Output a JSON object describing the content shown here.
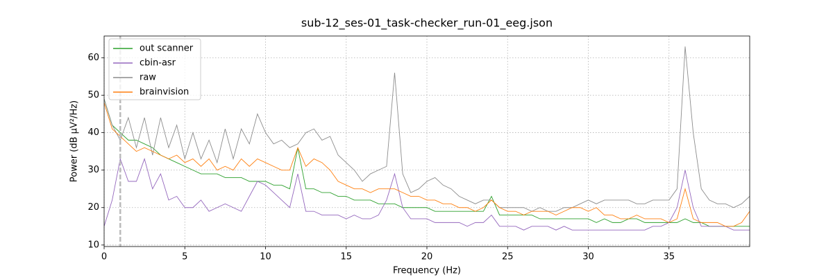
{
  "chart_data": {
    "type": "line",
    "title": "sub-12_ses-01_task-checker_run-01_eeg.json",
    "xlabel": "Frequency (Hz)",
    "ylabel": "Power (dB µV²/Hz)",
    "x": [
      0,
      0.5,
      1,
      1.5,
      2,
      2.5,
      3,
      3.5,
      4,
      4.5,
      5,
      5.5,
      6,
      6.5,
      7,
      7.5,
      8,
      8.5,
      9,
      9.5,
      10,
      10.5,
      11,
      11.5,
      12,
      12.5,
      13,
      13.5,
      14,
      14.5,
      15,
      15.5,
      16,
      16.5,
      17,
      17.5,
      18,
      18.5,
      19,
      19.5,
      20,
      20.5,
      21,
      21.5,
      22,
      22.5,
      23,
      23.5,
      24,
      24.5,
      25,
      25.5,
      26,
      26.5,
      27,
      27.5,
      28,
      28.5,
      29,
      29.5,
      30,
      30.5,
      31,
      31.5,
      32,
      32.5,
      33,
      33.5,
      34,
      34.5,
      35,
      35.5,
      36,
      36.5,
      37,
      37.5,
      38,
      38.5,
      39,
      39.5,
      40
    ],
    "series": [
      {
        "name": "out scanner",
        "color": "#2ca02c",
        "values": [
          49,
          42,
          40,
          38,
          38,
          37,
          36,
          34,
          33,
          32,
          31,
          30,
          29,
          29,
          29,
          28,
          28,
          28,
          27,
          27,
          27,
          26,
          26,
          25,
          36,
          25,
          25,
          24,
          24,
          23,
          23,
          22,
          22,
          22,
          21,
          21,
          21,
          20,
          20,
          20,
          20,
          19,
          19,
          19,
          19,
          19,
          19,
          19,
          23,
          18,
          18,
          18,
          18,
          18,
          17,
          17,
          17,
          17,
          17,
          17,
          17,
          16,
          17,
          16,
          16,
          17,
          17,
          16,
          16,
          16,
          16,
          16,
          17,
          16,
          16,
          15,
          15,
          15,
          15,
          15,
          15
        ]
      },
      {
        "name": "cbin-asr",
        "color": "#9467bd",
        "values": [
          15,
          22,
          33,
          27,
          27,
          33,
          25,
          29,
          22,
          23,
          20,
          20,
          22,
          19,
          20,
          21,
          20,
          19,
          23,
          27,
          26,
          24,
          22,
          20,
          29,
          19,
          19,
          18,
          18,
          18,
          17,
          18,
          17,
          17,
          18,
          22,
          29,
          20,
          17,
          17,
          17,
          16,
          16,
          16,
          16,
          15,
          16,
          16,
          18,
          15,
          15,
          15,
          14,
          15,
          15,
          15,
          14,
          15,
          14,
          14,
          14,
          14,
          14,
          14,
          14,
          14,
          14,
          14,
          15,
          15,
          16,
          20,
          30,
          20,
          15,
          15,
          15,
          15,
          14,
          14,
          14
        ]
      },
      {
        "name": "raw",
        "color": "#8c8c8c",
        "values": [
          49,
          42,
          38,
          44,
          36,
          44,
          34,
          44,
          36,
          42,
          33,
          40,
          33,
          38,
          32,
          41,
          33,
          41,
          37,
          45,
          40,
          37,
          38,
          36,
          37,
          40,
          41,
          38,
          39,
          34,
          32,
          30,
          27,
          29,
          30,
          31,
          56,
          29,
          24,
          25,
          27,
          28,
          26,
          25,
          23,
          22,
          21,
          22,
          22,
          20,
          20,
          20,
          20,
          19,
          20,
          19,
          19,
          20,
          20,
          21,
          22,
          21,
          22,
          22,
          22,
          22,
          21,
          21,
          22,
          22,
          22,
          25,
          63,
          40,
          25,
          22,
          21,
          21,
          20,
          21,
          23
        ]
      },
      {
        "name": "brainvision",
        "color": "#ff7f0e",
        "values": [
          48,
          41,
          39,
          37,
          35,
          36,
          35,
          34,
          33,
          34,
          32,
          33,
          31,
          33,
          30,
          31,
          30,
          33,
          31,
          33,
          32,
          31,
          30,
          30,
          36,
          31,
          33,
          32,
          30,
          27,
          26,
          25,
          25,
          24,
          25,
          25,
          25,
          24,
          23,
          23,
          22,
          22,
          21,
          21,
          20,
          20,
          19,
          20,
          22,
          20,
          19,
          19,
          18,
          19,
          19,
          19,
          18,
          19,
          20,
          20,
          19,
          20,
          18,
          18,
          17,
          17,
          18,
          17,
          17,
          17,
          16,
          17,
          25,
          17,
          16,
          16,
          16,
          15,
          15,
          16,
          19
        ]
      }
    ],
    "vlines": [
      1
    ],
    "xlim": [
      0,
      40
    ],
    "ylim": [
      9.6,
      65.8
    ],
    "xticks": [
      0,
      5,
      10,
      15,
      20,
      25,
      30,
      35
    ],
    "yticks": [
      10,
      20,
      30,
      40,
      50,
      60
    ],
    "grid": true,
    "legend": "upper left"
  }
}
